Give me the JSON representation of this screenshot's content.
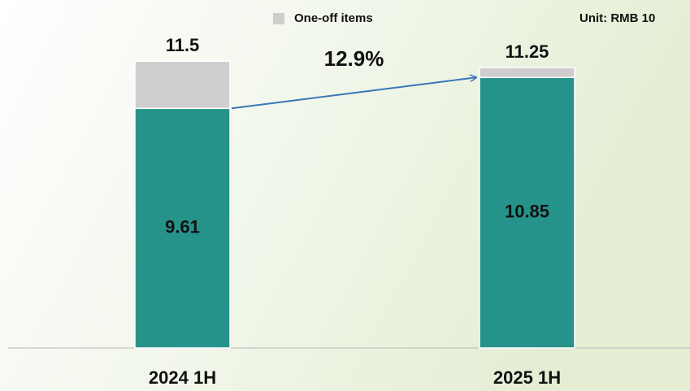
{
  "chart_data": {
    "type": "stacked_bar",
    "categories": [
      "2024 1H",
      "2025 1H"
    ],
    "series": [
      {
        "color": "#26938a",
        "values": [
          9.61,
          10.85
        ]
      },
      {
        "name": "One-off items",
        "color": "#cfcdcd",
        "values": [
          1.89,
          0.4
        ]
      }
    ],
    "totals": [
      11.5,
      11.25
    ],
    "ylim": [
      0,
      12
    ],
    "annotations": [
      "12.9%"
    ],
    "unit": "Unit: RMB 10",
    "arrow_color": "#3a76b8"
  }
}
